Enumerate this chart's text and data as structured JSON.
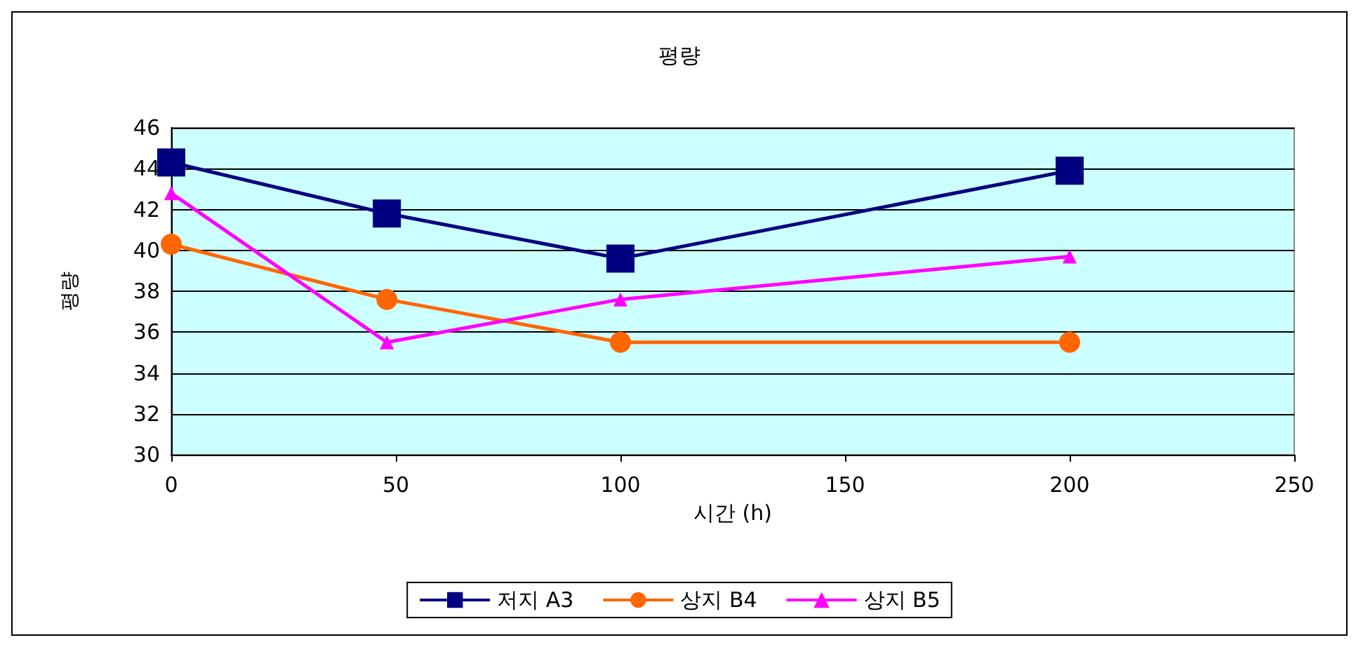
{
  "chart_data": {
    "type": "line",
    "title": "평량",
    "xlabel": "시간 (h)",
    "ylabel": "평량",
    "x": [
      0,
      48,
      100,
      200
    ],
    "xlim": [
      0,
      250
    ],
    "xticks": [
      0,
      50,
      100,
      150,
      200,
      250
    ],
    "ylim": [
      30,
      46
    ],
    "yticks": [
      30,
      32,
      34,
      36,
      38,
      40,
      42,
      44,
      46
    ],
    "grid": "y",
    "legend": "bottom",
    "series": [
      {
        "name": "저지 A3",
        "color": "#000080",
        "marker": "square",
        "values": [
          44.3,
          41.8,
          39.6,
          43.9
        ]
      },
      {
        "name": "상지 B4",
        "color": "#ff6600",
        "marker": "circle",
        "values": [
          40.3,
          37.6,
          35.5,
          35.5
        ]
      },
      {
        "name": "상지 B5",
        "color": "#ff00ff",
        "marker": "triangle",
        "values": [
          42.8,
          35.5,
          37.6,
          39.7
        ]
      }
    ]
  }
}
